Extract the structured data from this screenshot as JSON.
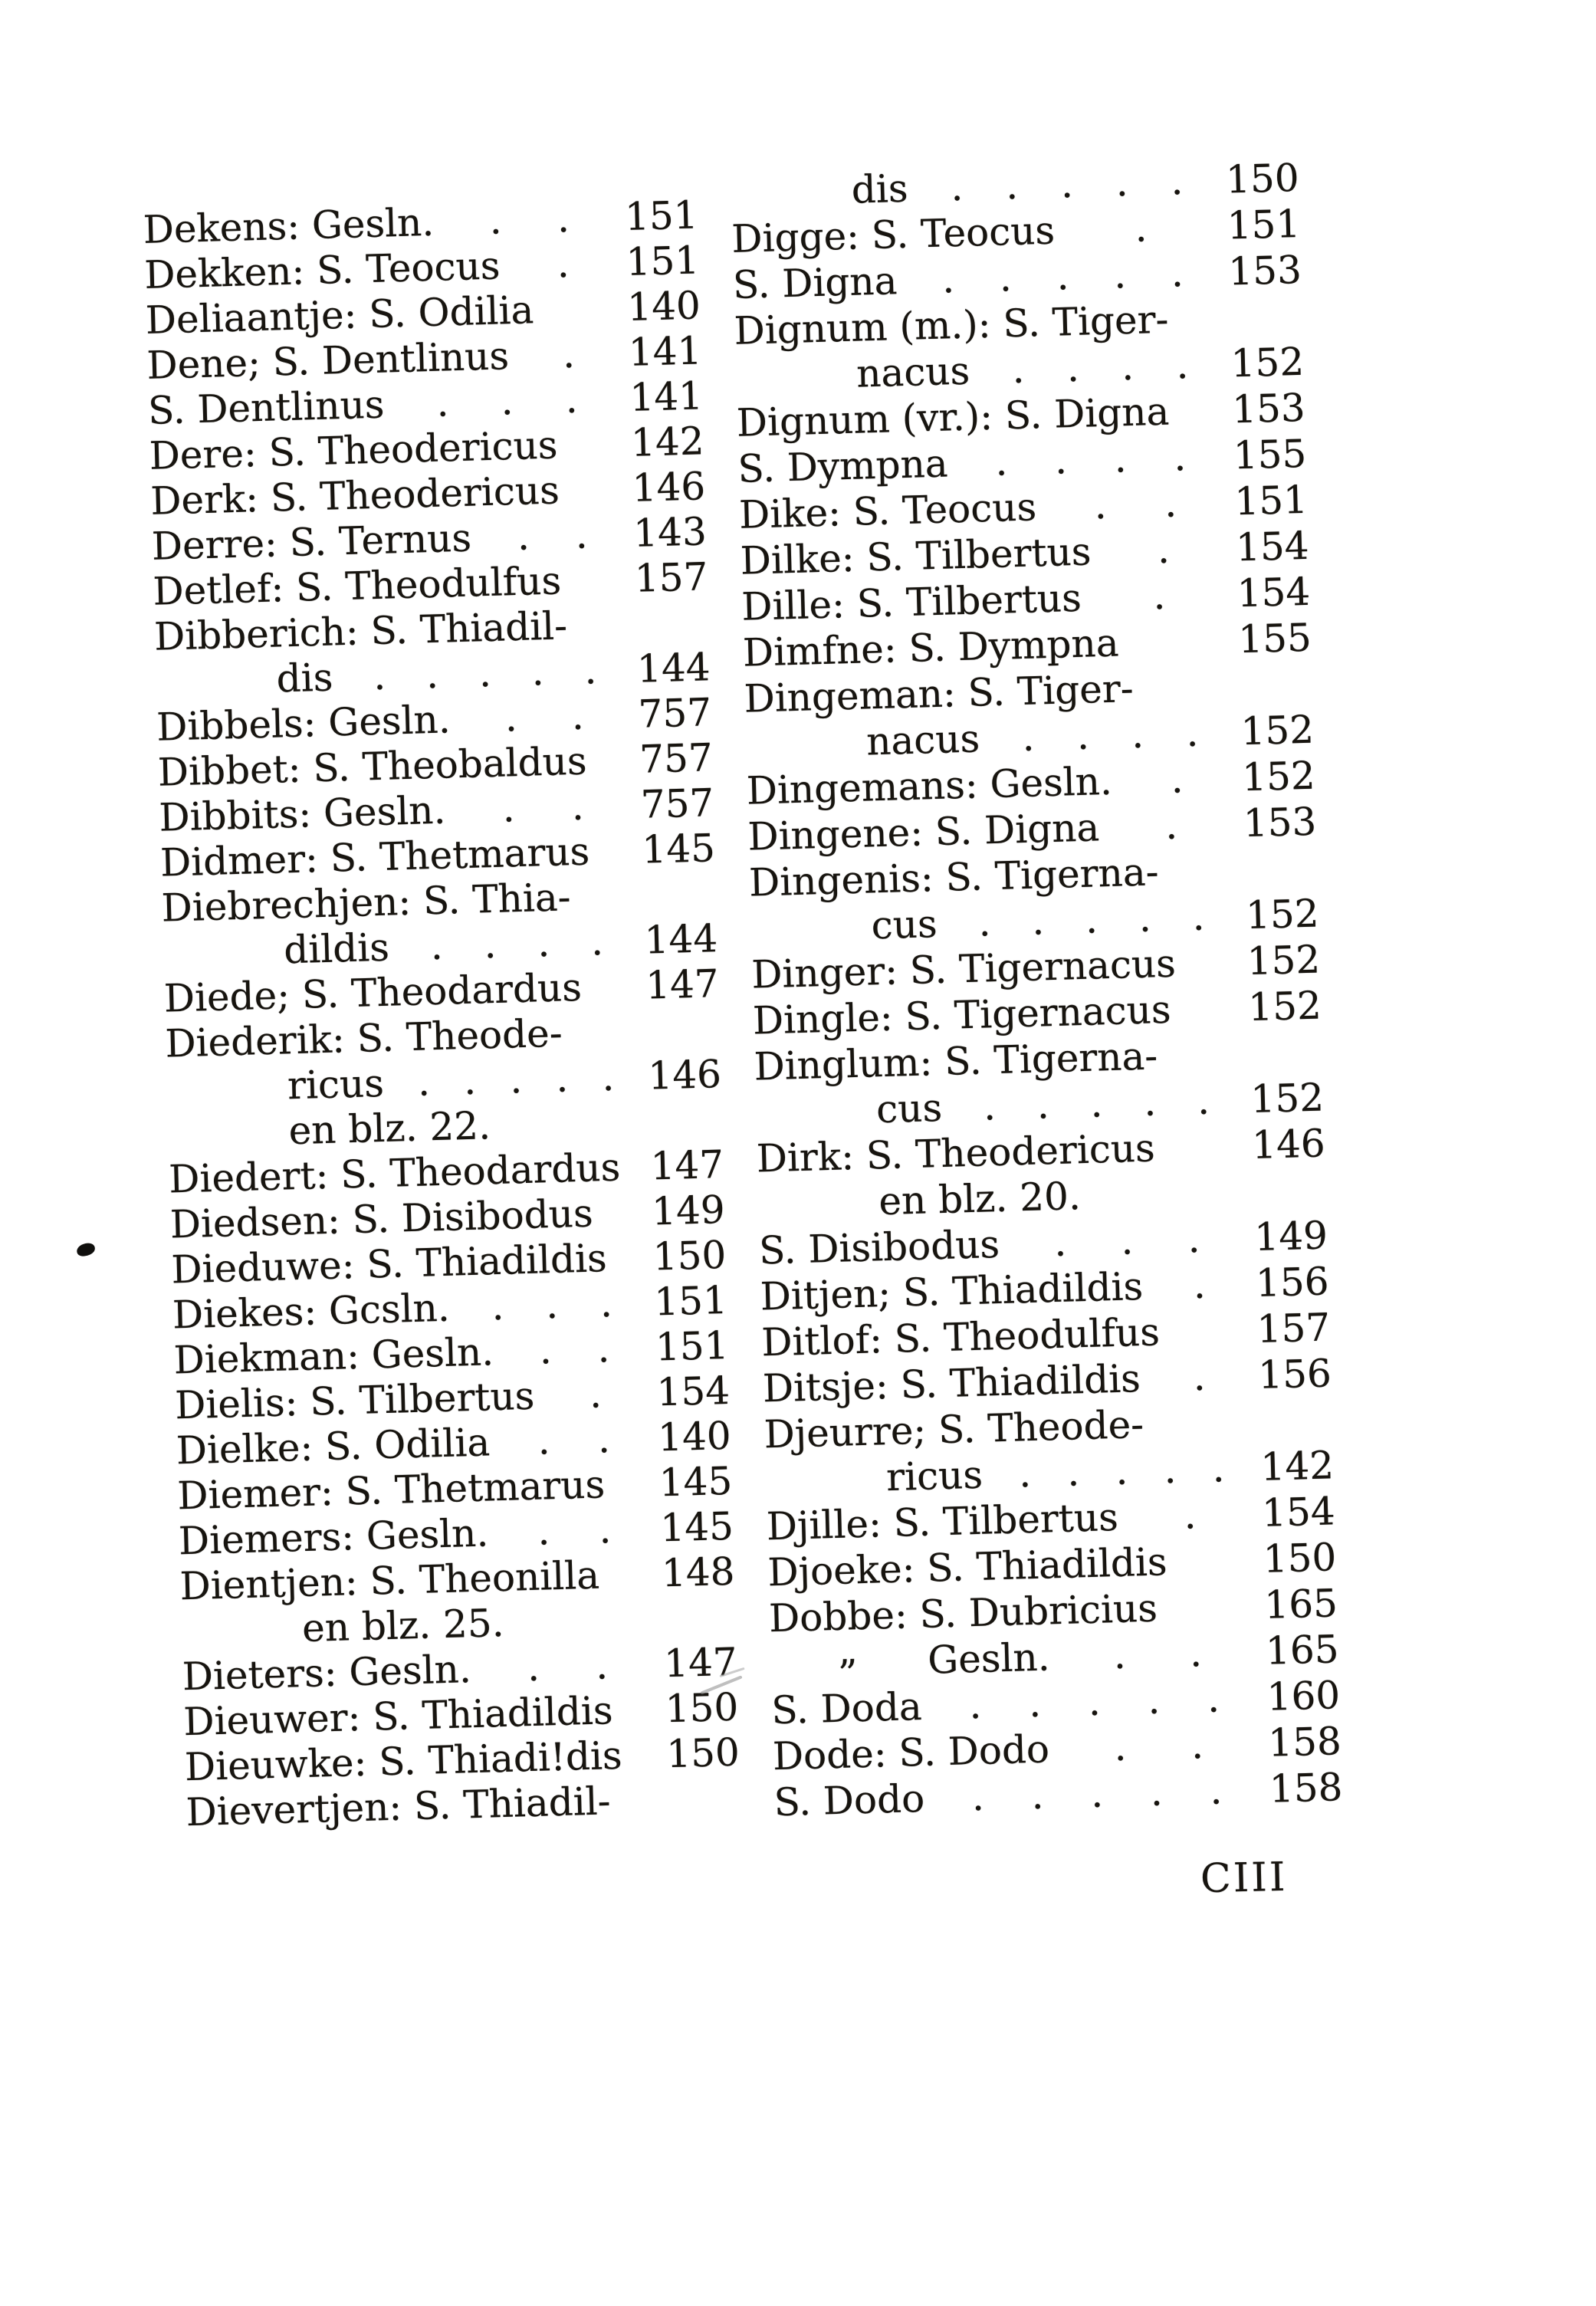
{
  "page": {
    "folio_number": "CIII"
  },
  "colors": {
    "paper": "#ffffff",
    "ink": "#17140f"
  },
  "index": {
    "left_column": [
      {
        "t": "Dekens: Gesln.",
        "d": ". .",
        "p": "151",
        "i": 0
      },
      {
        "t": "Dekken: S. Teocus",
        "d": ".",
        "p": "151",
        "i": 0
      },
      {
        "t": "Deliaantje: S. Odilia",
        "d": "",
        "p": "140",
        "i": 0
      },
      {
        "t": "Dene; S. Dentlinus",
        "d": ".",
        "p": "141",
        "i": 0
      },
      {
        "t": "S. Dentlinus",
        "d": ". . .",
        "p": "141",
        "i": 0
      },
      {
        "t": "Dere: S. Theodericus",
        "d": "",
        "p": "142",
        "i": 0
      },
      {
        "t": "Derk: S. Theodericus",
        "d": "",
        "p": "146",
        "i": 0
      },
      {
        "t": "Derre: S. Ternus",
        "d": ". .",
        "p": "143",
        "i": 0
      },
      {
        "t": "Detlef: S. Theodulfus",
        "d": "",
        "p": "157",
        "i": 0
      },
      {
        "t": "Dibberich: S. Thiadil-",
        "d": "",
        "p": "",
        "i": 0
      },
      {
        "t": "dis",
        "d": ". . . . .",
        "p": "144",
        "i": 1
      },
      {
        "t": "Dibbels: Gesln.",
        "d": ". .",
        "p": "757",
        "i": 0
      },
      {
        "t": "Dibbet: S. Theobaldus",
        "d": "",
        "p": "757",
        "i": 0
      },
      {
        "t": "Dibbits: Gesln.",
        "d": ". .",
        "p": "757",
        "i": 0
      },
      {
        "t": "Didmer: S. Thetmarus",
        "d": "",
        "p": "145",
        "i": 0
      },
      {
        "t": "Diebrechjen: S. Thia-",
        "d": "",
        "p": "",
        "i": 0
      },
      {
        "t": "dildis",
        "d": ". . . .",
        "p": "144",
        "i": 1
      },
      {
        "t": "Diede; S. Theodardus",
        "d": "",
        "p": "147",
        "i": 0
      },
      {
        "t": "Diederik: S. Theode-",
        "d": "",
        "p": "",
        "i": 0
      },
      {
        "t": "ricus",
        "d": ". . . . .",
        "p": "146",
        "i": 1
      },
      {
        "t": "en blz. 22.",
        "d": "",
        "p": "",
        "i": 1
      },
      {
        "t": "Diedert: S. Theodardus",
        "d": "",
        "p": "147",
        "i": 0
      },
      {
        "t": "Diedsen: S. Disibodus",
        "d": "",
        "p": "149",
        "i": 0
      },
      {
        "t": "Dieduwe: S. Thiadildis",
        "d": "",
        "p": "150",
        "i": 0
      },
      {
        "t": "Diekes: Gcsln.",
        "d": ". . .",
        "p": "151",
        "i": 0
      },
      {
        "t": "Diekman: Gesln.",
        "d": ". .",
        "p": "151",
        "i": 0
      },
      {
        "t": "Dielis: S. Tilbertus",
        "d": ".",
        "p": "154",
        "i": 0
      },
      {
        "t": "Dielke: S. Odilia",
        "d": ". .",
        "p": "140",
        "i": 0
      },
      {
        "t": "Diemer: S. Thetmarus",
        "d": "",
        "p": "145",
        "i": 0
      },
      {
        "t": "Diemers: Gesln.",
        "d": ". .",
        "p": "145",
        "i": 0
      },
      {
        "t": "Dientjen: S. Theonilla",
        "d": "",
        "p": "148",
        "i": 0
      },
      {
        "t": "en blz. 25.",
        "d": "",
        "p": "",
        "i": 1
      },
      {
        "t": "Dieters: Gesln.",
        "d": ". .",
        "p": "147",
        "i": 0
      },
      {
        "t": "Dieuwer: S. Thiadildis",
        "d": "",
        "p": "150",
        "i": 0
      },
      {
        "t": "Dieuwke: S. Thiadi!dis",
        "d": "",
        "p": "150",
        "i": 0
      },
      {
        "t": "Dievertjen: S. Thiadil-",
        "d": "",
        "p": "",
        "i": 0
      }
    ],
    "right_column": [
      {
        "t": "dis",
        "d": ". . . . .",
        "p": "150",
        "i": 1
      },
      {
        "t": "Digge: S. Teocus",
        "d": ".",
        "p": "151",
        "i": 0
      },
      {
        "t": "S. Digna",
        "d": ". . . . .",
        "p": "153",
        "i": 0
      },
      {
        "t": "Dignum (m.): S. Tiger-",
        "d": "",
        "p": "",
        "i": 0
      },
      {
        "t": "nacus",
        "d": ". . . .",
        "p": "152",
        "i": 1
      },
      {
        "t": "Dignum (vr.): S. Digna",
        "d": "",
        "p": "153",
        "i": 0
      },
      {
        "t": "S. Dympna",
        "d": ". . . .",
        "p": "155",
        "i": 0
      },
      {
        "t": "Dike: S. Teocus",
        "d": ". .",
        "p": "151",
        "i": 0
      },
      {
        "t": "Dilke: S. Tilbertus",
        "d": ".",
        "p": "154",
        "i": 0
      },
      {
        "t": "Dille: S. Tilbertus",
        "d": ".",
        "p": "154",
        "i": 0
      },
      {
        "t": "Dimfne: S. Dympna",
        "d": "",
        "p": "155",
        "i": 0
      },
      {
        "t": "Dingeman: S. Tiger-",
        "d": "",
        "p": "",
        "i": 0
      },
      {
        "t": "nacus",
        "d": ". . . .",
        "p": "152",
        "i": 1
      },
      {
        "t": "Dingemans: Gesln.",
        "d": ".",
        "p": "152",
        "i": 0
      },
      {
        "t": "Dingene: S. Digna",
        "d": ".",
        "p": "153",
        "i": 0
      },
      {
        "t": "Dingenis: S. Tigerna-",
        "d": "",
        "p": "",
        "i": 0
      },
      {
        "t": "cus",
        "d": ". . . . .",
        "p": "152",
        "i": 1
      },
      {
        "t": "Dinger: S. Tigernacus",
        "d": "",
        "p": "152",
        "i": 0
      },
      {
        "t": "Dingle: S. Tigernacus",
        "d": "",
        "p": "152",
        "i": 0
      },
      {
        "t": "Dinglum: S. Tigerna-",
        "d": "",
        "p": "",
        "i": 0
      },
      {
        "t": "cus",
        "d": ". . . . .",
        "p": "152",
        "i": 1
      },
      {
        "t": "Dirk: S. Theodericus",
        "d": "",
        "p": "146",
        "i": 0
      },
      {
        "t": "en blz. 20.",
        "d": "",
        "p": "",
        "i": 1
      },
      {
        "t": "S. Disibodus",
        "d": ". . .",
        "p": "149",
        "i": 0
      },
      {
        "t": "Ditjen; S. Thiadildis",
        "d": ".",
        "p": "156",
        "i": 0
      },
      {
        "t": "Ditlof: S. Theodulfus",
        "d": "",
        "p": "157",
        "i": 0
      },
      {
        "t": "Ditsje: S. Thiadildis",
        "d": ".",
        "p": "156",
        "i": 0
      },
      {
        "t": "Djeurre; S. Theode-",
        "d": "",
        "p": "",
        "i": 0
      },
      {
        "t": "ricus",
        "d": ". . . . .",
        "p": "142",
        "i": 1
      },
      {
        "t": "Djille: S. Tilbertus",
        "d": ".",
        "p": "154",
        "i": 0
      },
      {
        "t": "Djoeke: S. Thiadildis",
        "d": "",
        "p": "150",
        "i": 0
      },
      {
        "t": "Dobbe: S. Dubricius",
        "d": "",
        "p": "165",
        "i": 0
      },
      {
        "m": "”",
        "t": "Gesln.",
        "d": ". .",
        "p": "165",
        "i": 0
      },
      {
        "t": "S. Doda",
        "d": ". . . . .",
        "p": "160",
        "i": 0
      },
      {
        "t": "Dode: S. Dodo",
        "d": ". .",
        "p": "158",
        "i": 0
      },
      {
        "t": "S. Dodo",
        "d": ". . . . .",
        "p": "158",
        "i": 0
      }
    ]
  }
}
